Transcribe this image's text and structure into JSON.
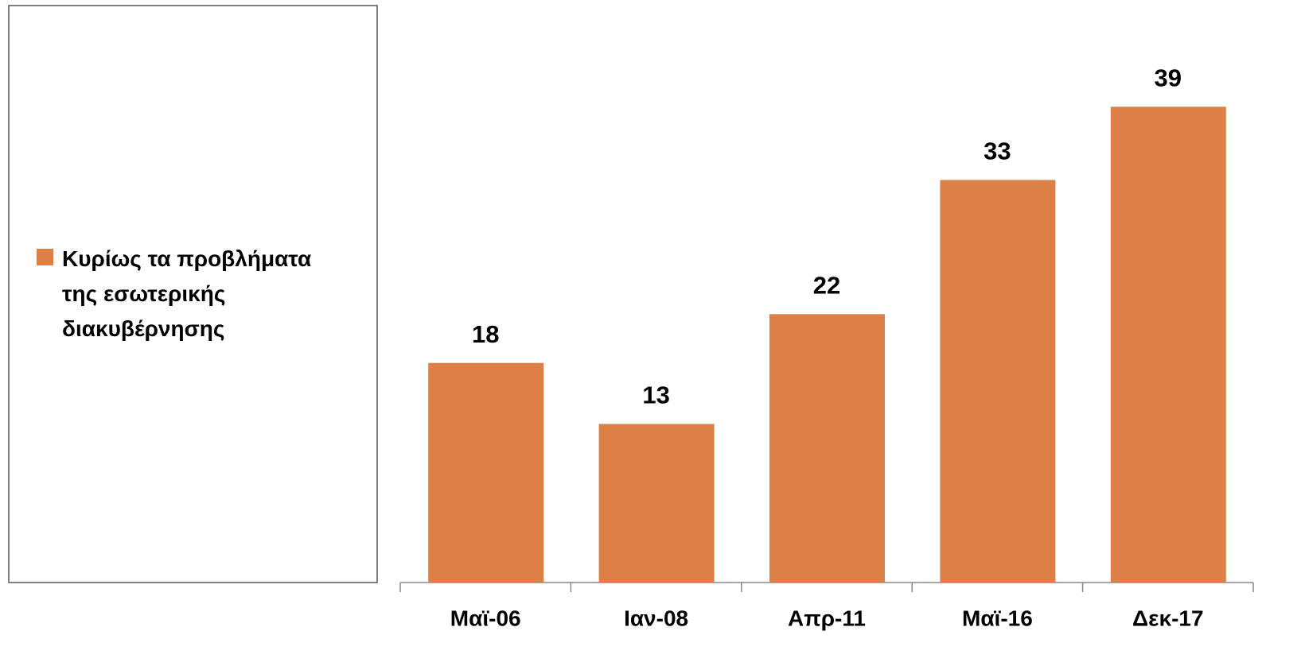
{
  "chart_data": {
    "type": "bar",
    "categories": [
      "Μαϊ-06",
      "Ιαν-08",
      "Απρ-11",
      "Μαϊ-16",
      "Δεκ-17"
    ],
    "series": [
      {
        "name": "Κυρίως τα προβλήματα της εσωτερικής διακυβέρνησης",
        "color": "#dd8048",
        "values": [
          18,
          13,
          22,
          33,
          39
        ]
      }
    ],
    "ylim": [
      0,
      40
    ],
    "legend": "left"
  }
}
